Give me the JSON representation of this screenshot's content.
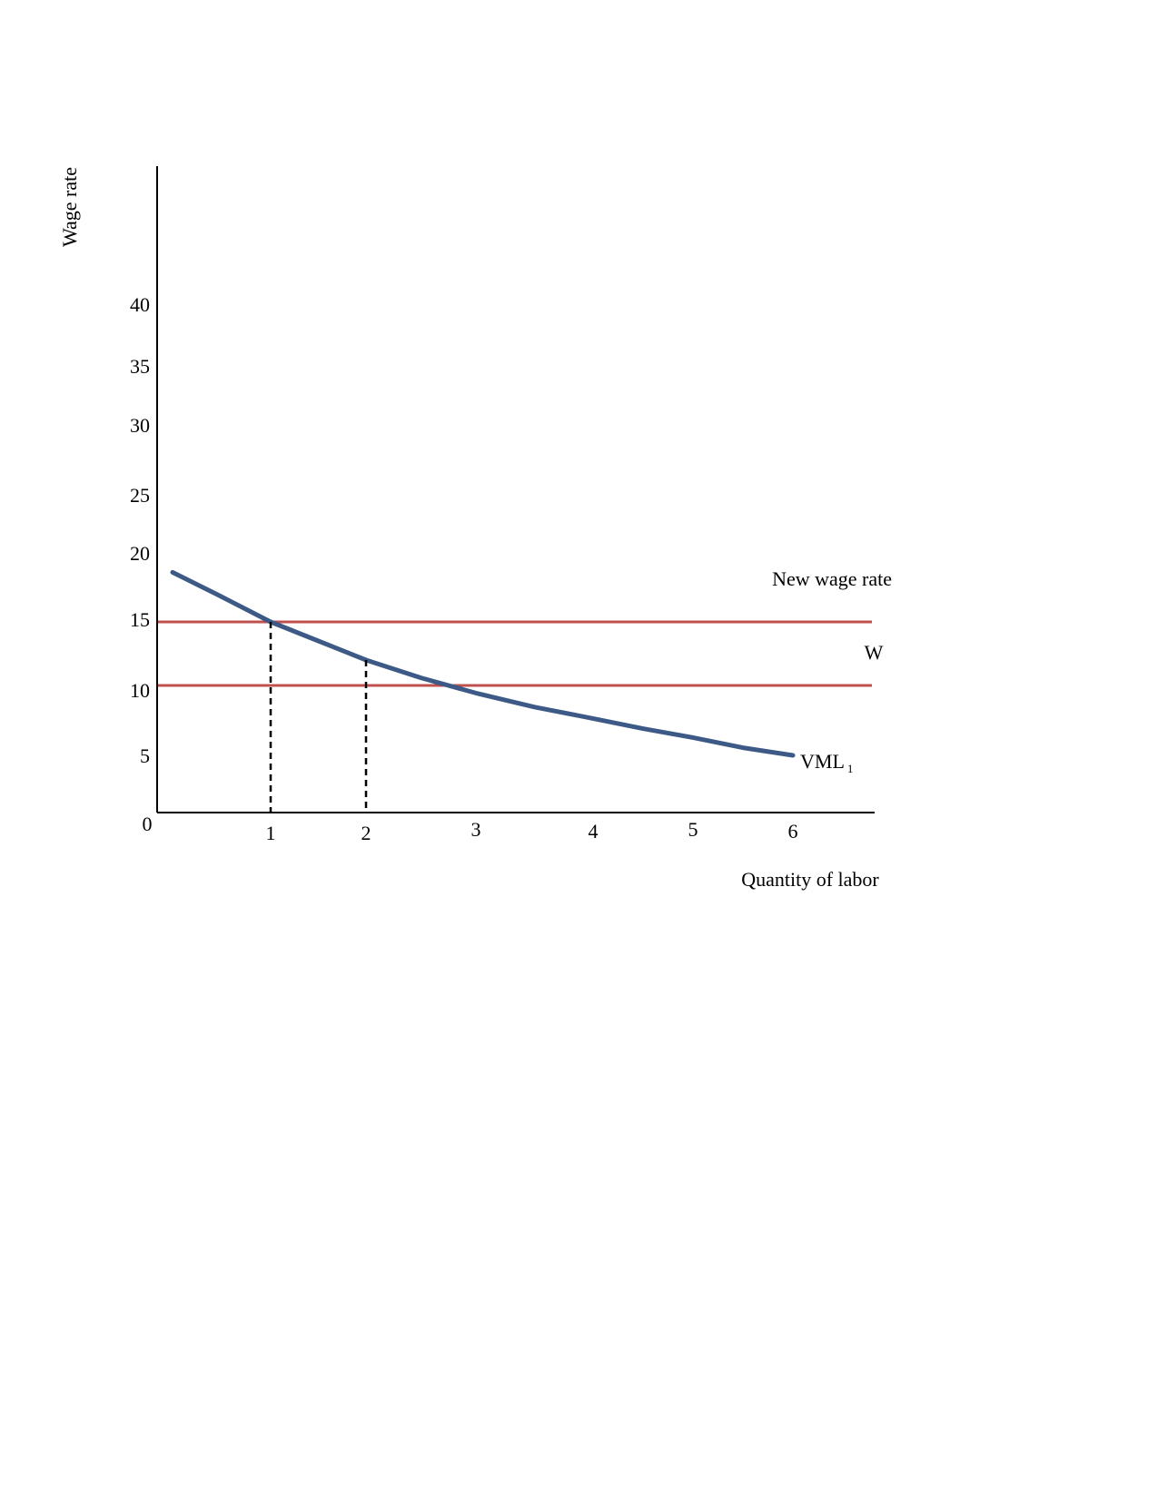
{
  "chart_data": {
    "type": "line",
    "title": "",
    "xlabel": "Quantity of labor",
    "ylabel": "Wage rate",
    "origin_label": "0",
    "xlim": [
      0,
      7
    ],
    "ylim": [
      0,
      40
    ],
    "x_ticks": [
      "1",
      "2",
      "3",
      "4",
      "5",
      "6"
    ],
    "x_tick_values": [
      1,
      2,
      3,
      4,
      5,
      6
    ],
    "y_ticks": [
      "5",
      "10",
      "15",
      "20",
      "25",
      "30",
      "35",
      "40"
    ],
    "y_tick_values": [
      5,
      10,
      15,
      20,
      25,
      30,
      35,
      40
    ],
    "grid": false,
    "curves": [
      {
        "label": "VML",
        "label_subscript": "1",
        "color": "#3d5a87",
        "x": [
          0.1,
          0.5,
          1.0,
          1.5,
          2.0,
          2.5,
          3.0,
          3.5,
          4.0,
          4.5,
          5.0,
          5.5,
          6.0
        ],
        "y": [
          18.9,
          17.2,
          15.0,
          13.5,
          12.0,
          10.6,
          9.4,
          8.3,
          7.4,
          6.6,
          5.9,
          5.1,
          4.5
        ]
      }
    ],
    "wage_lines": [
      {
        "label": "New wage rate",
        "value": 15,
        "color": "#c0504d"
      },
      {
        "label": "W",
        "value": 10,
        "color": "#c0504d"
      }
    ],
    "dropdown_lines": [
      {
        "x": 1,
        "y": 15
      },
      {
        "x": 2,
        "y": 12
      }
    ]
  }
}
